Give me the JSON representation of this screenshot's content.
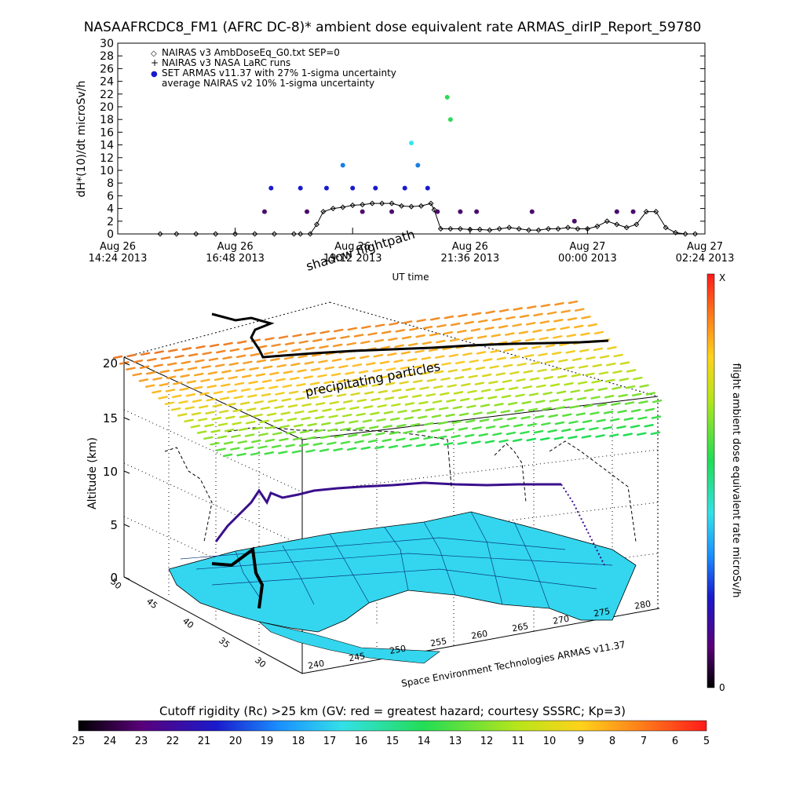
{
  "title": "NASAAFRCDC8_FM1 (AFRC DC-8)* ambient dose equivalent rate ARMAS_dirIP_Report_59780",
  "colors": {
    "nairas_v3": "#000000",
    "armas_purple": "#4b0c6b",
    "armas_blue": "#1a1acc",
    "armas_lightblue": "#1a7fe0",
    "armas_cyan": "#33e6f0",
    "armas_green": "#33d95a",
    "map_land": "#33d6ee",
    "uncertainty": "#000000"
  },
  "chart_data": [
    {
      "type": "scatter",
      "xlabel": "UT time",
      "ylabel": "dH*(10)/dt microSv/h",
      "ylim": [
        0,
        30
      ],
      "yticks": [
        "0",
        "2",
        "4",
        "6",
        "8",
        "10",
        "12",
        "14",
        "16",
        "18",
        "20",
        "22",
        "24",
        "26",
        "28",
        "30"
      ],
      "xticks": [
        {
          "line1": "Aug 26",
          "line2": "14:24 2013"
        },
        {
          "line1": "Aug 26",
          "line2": "16:48 2013"
        },
        {
          "line1": "Aug 26",
          "line2": "19:12 2013"
        },
        {
          "line1": "Aug 26",
          "line2": "21:36 2013"
        },
        {
          "line1": "Aug 27",
          "line2": "00:00 2013"
        },
        {
          "line1": "Aug 27",
          "line2": "02:24 2013"
        }
      ],
      "legend": [
        {
          "symbol": "◇",
          "label": "NAIRAS v3 AmbDoseEq_G0.txt SEP=0"
        },
        {
          "symbol": "+",
          "label": "NAIRAS v3 NASA LaRC runs"
        },
        {
          "symbol": "●",
          "label": "SET ARMAS v11.37 with 27% 1-sigma uncertainty"
        },
        {
          "symbol": "",
          "label": "average NAIRAS v2 10% 1-sigma uncertainty"
        }
      ],
      "series": [
        {
          "x_hours": [
            1.3,
            1.8,
            2.4,
            3.0,
            3.6,
            4.2,
            4.8,
            5.4,
            5.6,
            5.9,
            6.1,
            6.3,
            6.6,
            6.9,
            7.2,
            7.5,
            7.8,
            8.1,
            8.4,
            8.7,
            9.0,
            9.3,
            9.6,
            9.7,
            9.9,
            10.2,
            10.5,
            10.8,
            11.1,
            11.4,
            11.7,
            12.0,
            12.3,
            12.6,
            12.9,
            13.2,
            13.5,
            13.8,
            14.1,
            14.4,
            14.7,
            15.0,
            15.3,
            15.6,
            15.9,
            16.2,
            16.5,
            16.8,
            17.1,
            17.4,
            17.7
          ],
          "values": [
            0,
            0,
            0,
            0,
            0,
            0,
            0,
            0,
            0,
            0,
            1.5,
            3.5,
            4.0,
            4.2,
            4.5,
            4.6,
            4.8,
            4.8,
            4.8,
            4.4,
            4.3,
            4.4,
            4.8,
            3.8,
            0.8,
            0.8,
            0.8,
            0.7,
            0.7,
            0.6,
            0.8,
            1.0,
            0.8,
            0.6,
            0.6,
            0.8,
            0.8,
            1.0,
            0.8,
            0.8,
            1.2,
            2.0,
            1.5,
            1.0,
            1.5,
            3.5,
            3.5,
            1.0,
            0.2,
            0,
            0
          ]
        },
        {
          "points": [
            {
              "x": 4.5,
              "y": 3.5
            },
            {
              "x": 4.7,
              "y": 7.2
            },
            {
              "x": 5.6,
              "y": 7.2
            },
            {
              "x": 5.8,
              "y": 3.5
            },
            {
              "x": 6.4,
              "y": 7.2
            },
            {
              "x": 6.9,
              "y": 10.8
            },
            {
              "x": 7.2,
              "y": 7.2
            },
            {
              "x": 7.5,
              "y": 3.5
            },
            {
              "x": 7.9,
              "y": 7.2
            },
            {
              "x": 8.4,
              "y": 3.5
            },
            {
              "x": 8.8,
              "y": 7.2
            },
            {
              "x": 9.0,
              "y": 14.3
            },
            {
              "x": 9.2,
              "y": 10.8
            },
            {
              "x": 9.5,
              "y": 7.2
            },
            {
              "x": 9.8,
              "y": 3.5
            },
            {
              "x": 10.1,
              "y": 21.5
            },
            {
              "x": 10.2,
              "y": 18.0
            },
            {
              "x": 10.5,
              "y": 3.5
            },
            {
              "x": 11.0,
              "y": 3.5
            },
            {
              "x": 12.7,
              "y": 3.5
            },
            {
              "x": 14.0,
              "y": 2.0
            },
            {
              "x": 15.3,
              "y": 3.5
            },
            {
              "x": 15.8,
              "y": 3.5
            }
          ]
        }
      ]
    },
    {
      "type": "scatter",
      "zlabel": "Altitude (km)",
      "zticks": [
        "0",
        "5",
        "10",
        "15",
        "20"
      ],
      "lat_ticks": [
        "50",
        "45",
        "40",
        "35",
        "30"
      ],
      "lon_ticks": [
        "240",
        "245",
        "250",
        "255",
        "260",
        "265",
        "270",
        "275",
        "280"
      ],
      "annotations": [
        "shadow flightpath",
        "precipitating particles",
        "Space Environment Technologies ARMAS v11.37"
      ],
      "colorbar_label": "flight ambient dose equivalent rate microSv/h",
      "colorbar_top": "X",
      "colorbar_bottom": "0"
    },
    {
      "type": "heatmap",
      "label": "Cutoff rigidity (Rc) >25 km (GV: red = greatest hazard; courtesy SSSRC; Kp=3)",
      "ticks": [
        "25",
        "24",
        "23",
        "22",
        "21",
        "20",
        "19",
        "18",
        "17",
        "16",
        "15",
        "14",
        "13",
        "12",
        "11",
        "10",
        "9",
        "8",
        "7",
        "6",
        "5"
      ]
    }
  ]
}
